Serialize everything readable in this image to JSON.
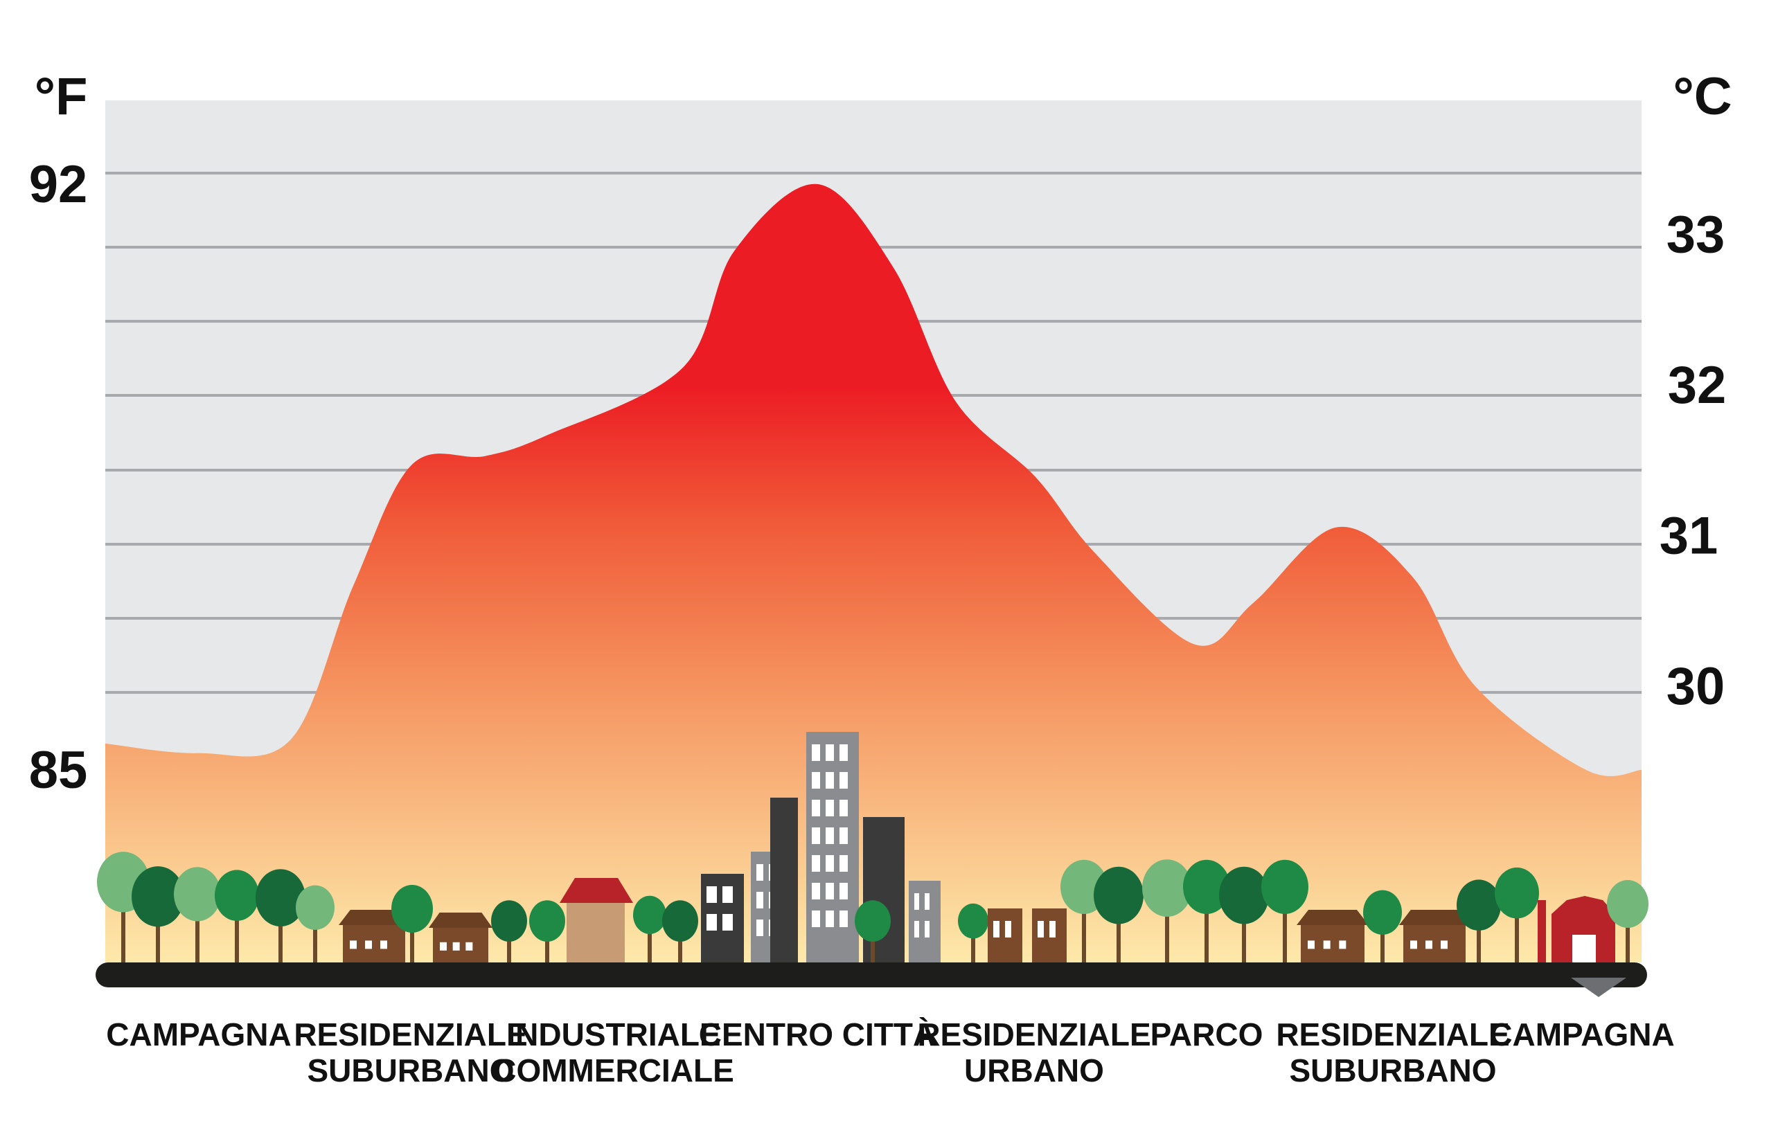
{
  "chart_data": {
    "type": "area",
    "title": "",
    "left_axis": {
      "unit": "°F",
      "ticks": [
        {
          "value": 85,
          "label": "85"
        },
        {
          "value": 92,
          "label": "92"
        }
      ],
      "range": [
        82.7,
        93.0
      ]
    },
    "right_axis": {
      "unit": "°C",
      "ticks": [
        {
          "value": 30,
          "label": "30"
        },
        {
          "value": 31,
          "label": "31"
        },
        {
          "value": 32,
          "label": "32"
        },
        {
          "value": 33,
          "label": "33"
        }
      ]
    },
    "grid": true,
    "categories": [
      "CAMPAGNA",
      "RESIDENZIALE SUBURBANO",
      "INDUSTRIALE COMMERCIALE",
      "CENTRO CITTÀ",
      "RESIDENZIALE URBANO",
      "PARCO",
      "RESIDENZIALE SUBURBANO",
      "CAMPAGNA"
    ],
    "category_labels": [
      [
        "CAMPAGNA"
      ],
      [
        "RESIDENZIALE",
        "SUBURBANO"
      ],
      [
        "INDUSTRIALE",
        "COMMERCIALE"
      ],
      [
        "CENTRO CITTÀ"
      ],
      [
        "RESIDENZIALE",
        "URBANO"
      ],
      [
        "PARCO"
      ],
      [
        "RESIDENZIALE",
        "SUBURBANO"
      ],
      [
        "CAMPAGNA"
      ]
    ],
    "values_f": [
      85.2,
      88.7,
      89.0,
      92.0,
      88.5,
      86.5,
      87.9,
      85.0
    ],
    "colors": {
      "peak": "#ec1c24",
      "mid": "#f37a4b",
      "low": "#f9ad76",
      "base": "#fde4a6",
      "background": "#e7e8ea",
      "gridline": "#a8a9ad",
      "ground": "#1d1d1b"
    }
  }
}
